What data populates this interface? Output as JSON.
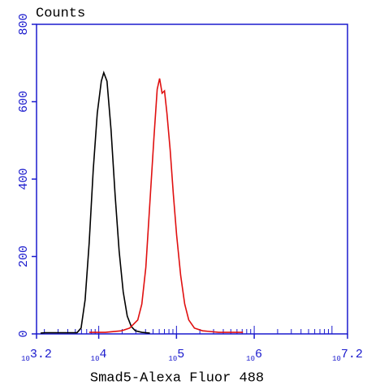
{
  "chart_data": {
    "type": "line",
    "title": "Counts",
    "x_label": "Smad5-Alexa Fluor 488",
    "xscale": "log",
    "xlim": [
      1584.89,
      15848931.9
    ],
    "xticks": [
      {
        "value": 1584.89,
        "label": "10",
        "exponent": "3.2"
      },
      {
        "value": 10000,
        "label": "10",
        "exponent": "4"
      },
      {
        "value": 100000,
        "label": "10",
        "exponent": "5"
      },
      {
        "value": 1000000,
        "label": "10",
        "exponent": "6"
      },
      {
        "value": 15848931.9,
        "label": "10",
        "exponent": "7.2"
      }
    ],
    "ylim": [
      0,
      800
    ],
    "yticks": [
      0,
      200,
      400,
      600,
      800
    ],
    "axis_color": "#1a1acd",
    "series": [
      {
        "color": "#000000",
        "x": [
          1786,
          2014,
          3254,
          5250,
          5929,
          6683,
          7535,
          8492,
          9573,
          10795,
          11610,
          12773,
          14393,
          16230,
          18300,
          20640,
          23270,
          26240,
          29580,
          35830,
          45500
        ],
        "values": [
          2,
          3,
          3,
          3,
          15,
          88,
          235,
          423,
          570,
          653,
          675,
          653,
          528,
          360,
          214,
          109,
          46,
          19,
          8,
          4,
          2
        ]
      },
      {
        "color": "#e01010",
        "x": [
          7535,
          12160,
          19660,
          25000,
          31770,
          35830,
          40360,
          45500,
          51290,
          56490,
          60680,
          65310,
          70150,
          75390,
          82990,
          91200,
          100460,
          113240,
          127640,
          143880,
          170200,
          216300,
          349900,
          717800
        ],
        "values": [
          4,
          4,
          8,
          15,
          36,
          77,
          172,
          339,
          507,
          632,
          660,
          622,
          628,
          570,
          475,
          360,
          255,
          151,
          77,
          36,
          15,
          8,
          4,
          4
        ]
      }
    ]
  }
}
